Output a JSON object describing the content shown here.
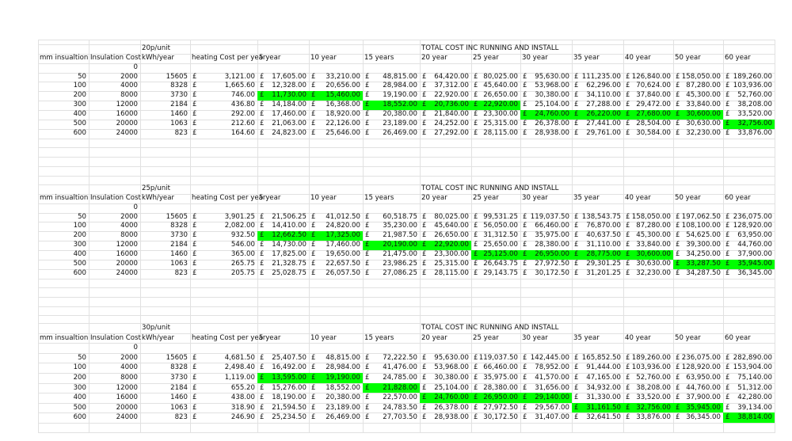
{
  "currency_symbol": "£",
  "highlight_color": "#00ff00",
  "sheets": [
    {
      "rate": "20p/unit",
      "total_heading": "TOTAL COST INC RUNNING AND INSTALL",
      "columns": [
        "mm insualtion",
        "Insulation Cost",
        "kWh/year",
        "heating Cost per year",
        "5 year",
        "10 year",
        "15 years",
        "20 year",
        "25 year",
        "30 year",
        "35 year",
        "40 year",
        "50 year",
        "60 year"
      ],
      "initial_cost": "0",
      "rows": [
        {
          "cells": [
            "50",
            "2000",
            "15605",
            "3,121.00",
            "17,605.00",
            "33,210.00",
            "48,815.00",
            "64,420.00",
            "80,025.00",
            "95,630.00",
            "111,235.00",
            "126,840.00",
            "158,050.00",
            "189,260.00"
          ],
          "highlight": []
        },
        {
          "cells": [
            "100",
            "4000",
            "8328",
            "1,665.60",
            "12,328.00",
            "20,656.00",
            "28,984.00",
            "37,312.00",
            "45,640.00",
            "53,968.00",
            "62,296.00",
            "70,624.00",
            "87,280.00",
            "103,936.00"
          ],
          "highlight": []
        },
        {
          "cells": [
            "200",
            "8000",
            "3730",
            "746.00",
            "11,730.00",
            "15,460.00",
            "19,190.00",
            "22,920.00",
            "26,650.00",
            "30,380.00",
            "34,110.00",
            "37,840.00",
            "45,300.00",
            "52,760.00"
          ],
          "highlight": [
            4,
            5
          ]
        },
        {
          "cells": [
            "300",
            "12000",
            "2184",
            "436.80",
            "14,184.00",
            "16,368.00",
            "18,552.00",
            "20,736.00",
            "22,920.00",
            "25,104.00",
            "27,288.00",
            "29,472.00",
            "33,840.00",
            "38,208.00"
          ],
          "highlight": [
            6,
            7,
            8
          ]
        },
        {
          "cells": [
            "400",
            "16000",
            "1460",
            "292.00",
            "17,460.00",
            "18,920.00",
            "20,380.00",
            "21,840.00",
            "23,300.00",
            "24,760.00",
            "26,220.00",
            "27,680.00",
            "30,600.00",
            "33,520.00"
          ],
          "highlight": [
            9,
            10,
            11,
            12
          ]
        },
        {
          "cells": [
            "500",
            "20000",
            "1063",
            "212.60",
            "21,063.00",
            "22,126.00",
            "23,189.00",
            "24,252.00",
            "25,315.00",
            "26,378.00",
            "27,441.00",
            "28,504.00",
            "30,630.00",
            "32,756.00"
          ],
          "highlight": [
            13
          ]
        },
        {
          "cells": [
            "600",
            "24000",
            "823",
            "164.60",
            "24,823.00",
            "25,646.00",
            "26,469.00",
            "27,292.00",
            "28,115.00",
            "28,938.00",
            "29,761.00",
            "30,584.00",
            "32,230.00",
            "33,876.00"
          ],
          "highlight": []
        }
      ]
    },
    {
      "rate": "25p/unit",
      "total_heading": "TOTAL COST INC RUNNING AND INSTALL",
      "columns": [
        "mm insualtion",
        "Insulation Cost",
        "kWh/year",
        "heating Cost per year",
        "5 year",
        "10 year",
        "15 years",
        "20 year",
        "25 year",
        "30 year",
        "35 year",
        "40 year",
        "50 year",
        "60 year"
      ],
      "initial_cost": "0",
      "rows": [
        {
          "cells": [
            "50",
            "2000",
            "15605",
            "3,901.25",
            "21,506.25",
            "41,012.50",
            "60,518.75",
            "80,025.00",
            "99,531.25",
            "119,037.50",
            "138,543.75",
            "158,050.00",
            "197,062.50",
            "236,075.00"
          ],
          "highlight": []
        },
        {
          "cells": [
            "100",
            "4000",
            "8328",
            "2,082.00",
            "14,410.00",
            "24,820.00",
            "35,230.00",
            "45,640.00",
            "56,050.00",
            "66,460.00",
            "76,870.00",
            "87,280.00",
            "108,100.00",
            "128,920.00"
          ],
          "highlight": []
        },
        {
          "cells": [
            "200",
            "8000",
            "3730",
            "932.50",
            "12,662.50",
            "17,325.00",
            "21,987.50",
            "26,650.00",
            "31,312.50",
            "35,975.00",
            "40,637.50",
            "45,300.00",
            "54,625.00",
            "63,950.00"
          ],
          "highlight": [
            4,
            5
          ]
        },
        {
          "cells": [
            "300",
            "12000",
            "2184",
            "546.00",
            "14,730.00",
            "17,460.00",
            "20,190.00",
            "22,920.00",
            "25,650.00",
            "28,380.00",
            "31,110.00",
            "33,840.00",
            "39,300.00",
            "44,760.00"
          ],
          "highlight": [
            6,
            7
          ]
        },
        {
          "cells": [
            "400",
            "16000",
            "1460",
            "365.00",
            "17,825.00",
            "19,650.00",
            "21,475.00",
            "23,300.00",
            "25,125.00",
            "26,950.00",
            "28,775.00",
            "30,600.00",
            "34,250.00",
            "37,900.00"
          ],
          "highlight": [
            8,
            9,
            10,
            11
          ]
        },
        {
          "cells": [
            "500",
            "20000",
            "1063",
            "265.75",
            "21,328.75",
            "22,657.50",
            "23,986.25",
            "25,315.00",
            "26,643.75",
            "27,972.50",
            "29,301.25",
            "30,630.00",
            "33,287.50",
            "35,945.00"
          ],
          "highlight": [
            12,
            13
          ]
        },
        {
          "cells": [
            "600",
            "24000",
            "823",
            "205.75",
            "25,028.75",
            "26,057.50",
            "27,086.25",
            "28,115.00",
            "29,143.75",
            "30,172.50",
            "31,201.25",
            "32,230.00",
            "34,287.50",
            "36,345.00"
          ],
          "highlight": []
        }
      ]
    },
    {
      "rate": "30p/unit",
      "total_heading": "TOTAL COST INC RUNNING AND INSTALL",
      "columns": [
        "mm insualtion",
        "Insulation Cost",
        "kWh/year",
        "heating Cost per year",
        "5 year",
        "10 year",
        "15 years",
        "20 year",
        "25 year",
        "30 year",
        "35 year",
        "40 year",
        "50 year",
        "60 year"
      ],
      "initial_cost": "0",
      "rows": [
        {
          "cells": [
            "50",
            "2000",
            "15605",
            "4,681.50",
            "25,407.50",
            "48,815.00",
            "72,222.50",
            "95,630.00",
            "119,037.50",
            "142,445.00",
            "165,852.50",
            "189,260.00",
            "236,075.00",
            "282,890.00"
          ],
          "highlight": []
        },
        {
          "cells": [
            "100",
            "4000",
            "8328",
            "2,498.40",
            "16,492.00",
            "28,984.00",
            "41,476.00",
            "53,968.00",
            "66,460.00",
            "78,952.00",
            "91,444.00",
            "103,936.00",
            "128,920.00",
            "153,904.00"
          ],
          "highlight": []
        },
        {
          "cells": [
            "200",
            "8000",
            "3730",
            "1,119.00",
            "13,595.00",
            "19,190.00",
            "24,785.00",
            "30,380.00",
            "35,975.00",
            "41,570.00",
            "47,165.00",
            "52,760.00",
            "63,950.00",
            "75,140.00"
          ],
          "highlight": [
            4,
            5
          ]
        },
        {
          "cells": [
            "300",
            "12000",
            "2184",
            "655.20",
            "15,276.00",
            "18,552.00",
            "21,828.00",
            "25,104.00",
            "28,380.00",
            "31,656.00",
            "34,932.00",
            "38,208.00",
            "44,760.00",
            "51,312.00"
          ],
          "highlight": [
            6
          ]
        },
        {
          "cells": [
            "400",
            "16000",
            "1460",
            "438.00",
            "18,190.00",
            "20,380.00",
            "22,570.00",
            "24,760.00",
            "26,950.00",
            "29,140.00",
            "31,330.00",
            "33,520.00",
            "37,900.00",
            "42,280.00"
          ],
          "highlight": [
            7,
            8,
            9
          ]
        },
        {
          "cells": [
            "500",
            "20000",
            "1063",
            "318.90",
            "21,594.50",
            "23,189.00",
            "24,783.50",
            "26,378.00",
            "27,972.50",
            "29,567.00",
            "31,161.50",
            "32,756.00",
            "35,945.00",
            "39,134.00"
          ],
          "highlight": [
            10,
            11,
            12
          ]
        },
        {
          "cells": [
            "600",
            "24000",
            "823",
            "246.90",
            "25,234.50",
            "26,469.00",
            "27,703.50",
            "28,938.00",
            "30,172.50",
            "31,407.00",
            "32,641.50",
            "33,876.00",
            "36,345.00",
            "38,814.00"
          ],
          "highlight": [
            13
          ]
        }
      ]
    }
  ]
}
